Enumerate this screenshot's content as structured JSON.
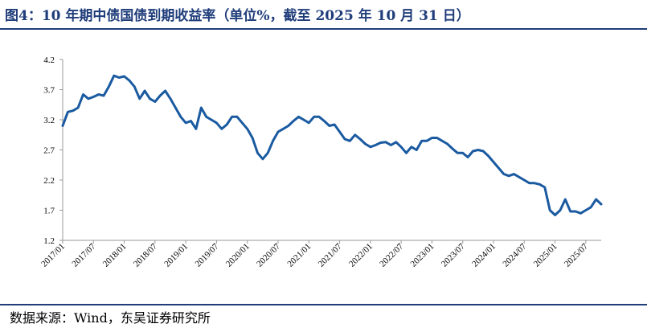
{
  "title": "图4：10 年期中债国债到期收益率（单位%，截至 2025 年 10 月 31 日）",
  "source": "数据来源：Wind，东吴证券研究所",
  "colors": {
    "line": "#1a5aa0",
    "rule": "#1f3d7a",
    "axis": "#999999"
  },
  "chart_data": {
    "type": "line",
    "title": "",
    "xlabel": "",
    "ylabel": "",
    "ylim": [
      1.2,
      4.2
    ],
    "yticks": [
      "4.2",
      "3.7",
      "3.2",
      "2.7",
      "2.2",
      "1.7",
      "1.2"
    ],
    "xlim": [
      "2017-01",
      "2025-10"
    ],
    "xticks": [
      "2017/01",
      "2017/07",
      "2018/01",
      "2018/07",
      "2019/01",
      "2019/07",
      "2020/01",
      "2020/07",
      "2021/01",
      "2021/07",
      "2022/01",
      "2022/07",
      "2023/01",
      "2023/07",
      "2024/01",
      "2024/07",
      "2025/01",
      "2025/07"
    ],
    "grid": false,
    "legend": "none",
    "series": [
      {
        "name": "",
        "x": [
          "2017-01",
          "2017-02",
          "2017-03",
          "2017-04",
          "2017-05",
          "2017-06",
          "2017-07",
          "2017-08",
          "2017-09",
          "2017-10",
          "2017-11",
          "2017-12",
          "2018-01",
          "2018-02",
          "2018-03",
          "2018-04",
          "2018-05",
          "2018-06",
          "2018-07",
          "2018-08",
          "2018-09",
          "2018-10",
          "2018-11",
          "2018-12",
          "2019-01",
          "2019-02",
          "2019-03",
          "2019-04",
          "2019-05",
          "2019-06",
          "2019-07",
          "2019-08",
          "2019-09",
          "2019-10",
          "2019-11",
          "2019-12",
          "2020-01",
          "2020-02",
          "2020-03",
          "2020-04",
          "2020-05",
          "2020-06",
          "2020-07",
          "2020-08",
          "2020-09",
          "2020-10",
          "2020-11",
          "2020-12",
          "2021-01",
          "2021-02",
          "2021-03",
          "2021-04",
          "2021-05",
          "2021-06",
          "2021-07",
          "2021-08",
          "2021-09",
          "2021-10",
          "2021-11",
          "2021-12",
          "2022-01",
          "2022-02",
          "2022-03",
          "2022-04",
          "2022-05",
          "2022-06",
          "2022-07",
          "2022-08",
          "2022-09",
          "2022-10",
          "2022-11",
          "2022-12",
          "2023-01",
          "2023-02",
          "2023-03",
          "2023-04",
          "2023-05",
          "2023-06",
          "2023-07",
          "2023-08",
          "2023-09",
          "2023-10",
          "2023-11",
          "2023-12",
          "2024-01",
          "2024-02",
          "2024-03",
          "2024-04",
          "2024-05",
          "2024-06",
          "2024-07",
          "2024-08",
          "2024-09",
          "2024-10",
          "2024-11",
          "2024-12",
          "2025-01",
          "2025-02",
          "2025-03",
          "2025-04",
          "2025-05",
          "2025-06",
          "2025-07",
          "2025-08",
          "2025-09",
          "2025-10"
        ],
        "values": [
          3.1,
          3.33,
          3.35,
          3.4,
          3.62,
          3.55,
          3.58,
          3.62,
          3.6,
          3.75,
          3.93,
          3.9,
          3.92,
          3.85,
          3.75,
          3.55,
          3.68,
          3.55,
          3.5,
          3.6,
          3.68,
          3.55,
          3.4,
          3.25,
          3.15,
          3.18,
          3.05,
          3.4,
          3.25,
          3.2,
          3.15,
          3.05,
          3.12,
          3.25,
          3.25,
          3.15,
          3.05,
          2.9,
          2.65,
          2.55,
          2.65,
          2.85,
          3.0,
          3.05,
          3.1,
          3.18,
          3.25,
          3.2,
          3.15,
          3.25,
          3.25,
          3.18,
          3.1,
          3.12,
          3.0,
          2.88,
          2.85,
          2.95,
          2.88,
          2.8,
          2.75,
          2.78,
          2.82,
          2.83,
          2.78,
          2.83,
          2.75,
          2.65,
          2.75,
          2.7,
          2.85,
          2.85,
          2.9,
          2.9,
          2.85,
          2.8,
          2.72,
          2.65,
          2.65,
          2.58,
          2.68,
          2.7,
          2.68,
          2.6,
          2.5,
          2.4,
          2.3,
          2.27,
          2.3,
          2.25,
          2.2,
          2.15,
          2.15,
          2.13,
          2.08,
          1.7,
          1.62,
          1.7,
          1.88,
          1.68,
          1.68,
          1.65,
          1.7,
          1.75,
          1.88,
          1.8
        ]
      }
    ]
  }
}
